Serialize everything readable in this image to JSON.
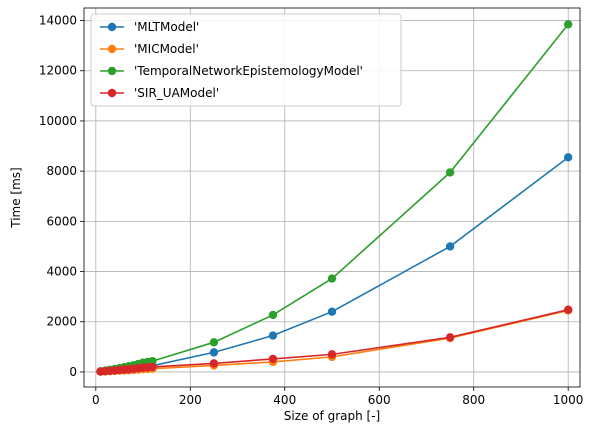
{
  "chart_data": {
    "type": "line",
    "title": "",
    "xlabel": "Size of graph [-]",
    "ylabel": "Time [ms]",
    "xlim": [
      -25,
      1025
    ],
    "ylim": [
      -600,
      14500
    ],
    "xticks": [
      0,
      200,
      400,
      600,
      800,
      1000
    ],
    "yticks": [
      0,
      2000,
      4000,
      6000,
      8000,
      10000,
      12000,
      14000
    ],
    "grid": true,
    "legend_position": "upper-left",
    "x": [
      10,
      20,
      30,
      40,
      50,
      60,
      70,
      80,
      90,
      100,
      110,
      120,
      250,
      375,
      500,
      750,
      1000
    ],
    "series": [
      {
        "name": "'MLTModel'",
        "color": "#1f77b4",
        "values": [
          20,
          40,
          60,
          80,
          100,
          120,
          140,
          160,
          190,
          210,
          230,
          250,
          780,
          1450,
          2400,
          5000,
          8550
        ]
      },
      {
        "name": "'MICModel'",
        "color": "#ff7f0e",
        "values": [
          10,
          20,
          30,
          40,
          50,
          60,
          70,
          80,
          95,
          110,
          120,
          130,
          260,
          400,
          600,
          1350,
          2450
        ]
      },
      {
        "name": "'TemporalNetworkEpistemologyModel'",
        "color": "#2ca02c",
        "values": [
          25,
          55,
          85,
          115,
          150,
          190,
          230,
          270,
          320,
          370,
          400,
          430,
          1180,
          2270,
          3720,
          7950,
          13850
        ]
      },
      {
        "name": "'SIR_UAModel'",
        "color": "#d62728",
        "values": [
          15,
          30,
          45,
          60,
          80,
          95,
          110,
          130,
          150,
          170,
          185,
          200,
          340,
          520,
          700,
          1380,
          2480
        ]
      }
    ]
  }
}
